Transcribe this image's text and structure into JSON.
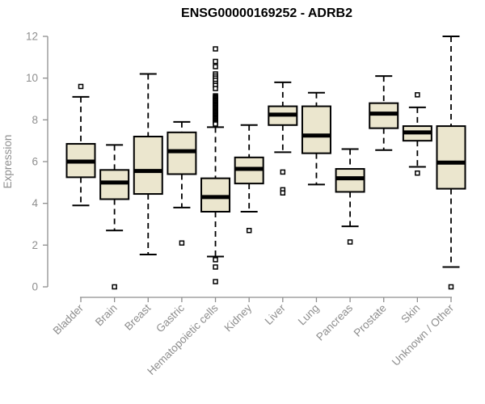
{
  "title": "ENSG00000169252 - ADRB2",
  "colors": {
    "box_fill": "#ebe6ce",
    "box_stroke": "#000000",
    "median_stroke": "#000000",
    "whisker_stroke": "#000000",
    "outlier_stroke": "#000000",
    "outlier_fill": "#ffffff",
    "axis": "#8e8e8e",
    "title": "#000000",
    "background": "#ffffff"
  },
  "chart_data": {
    "type": "boxplot",
    "title": "ENSG00000169252 - ADRB2",
    "xlabel": "",
    "ylabel": "Expression",
    "ylim": [
      0,
      12
    ],
    "yticks": [
      0,
      2,
      4,
      6,
      8,
      10,
      12
    ],
    "grid": false,
    "legend": false,
    "categories": [
      "Bladder",
      "Brain",
      "Breast",
      "Gastric",
      "Hematopoietic cells",
      "Kidney",
      "Liver",
      "Lung",
      "Pancreas",
      "Prostate",
      "Skin",
      "Unknown / Other"
    ],
    "series": [
      {
        "name": "Bladder",
        "whisker_low": 3.9,
        "q1": 5.25,
        "median": 6.0,
        "q3": 6.85,
        "whisker_high": 9.1,
        "outliers": [
          9.6
        ]
      },
      {
        "name": "Brain",
        "whisker_low": 2.7,
        "q1": 4.2,
        "median": 5.0,
        "q3": 5.6,
        "whisker_high": 6.8,
        "outliers": [
          0.0
        ]
      },
      {
        "name": "Breast",
        "whisker_low": 1.55,
        "q1": 4.45,
        "median": 5.55,
        "q3": 7.2,
        "whisker_high": 10.2,
        "outliers": []
      },
      {
        "name": "Gastric",
        "whisker_low": 3.8,
        "q1": 5.4,
        "median": 6.5,
        "q3": 7.4,
        "whisker_high": 7.9,
        "outliers": [
          2.1
        ]
      },
      {
        "name": "Hematopoietic cells",
        "whisker_low": 1.45,
        "q1": 3.6,
        "median": 4.3,
        "q3": 5.2,
        "whisker_high": 7.65,
        "outliers": [
          11.4,
          10.8,
          10.55,
          10.2,
          10.1,
          10.0,
          9.9,
          9.75,
          9.65,
          9.5,
          9.15,
          9.1,
          9.05,
          9.0,
          8.95,
          8.9,
          8.85,
          8.8,
          8.75,
          8.7,
          8.65,
          8.6,
          8.55,
          8.5,
          8.45,
          8.4,
          8.35,
          8.3,
          8.25,
          8.2,
          8.15,
          8.1,
          8.05,
          8.0,
          7.95,
          7.9,
          7.85,
          7.8,
          1.3,
          0.95,
          0.25
        ]
      },
      {
        "name": "Kidney",
        "whisker_low": 3.6,
        "q1": 4.95,
        "median": 5.65,
        "q3": 6.2,
        "whisker_high": 7.75,
        "outliers": [
          2.7
        ]
      },
      {
        "name": "Liver",
        "whisker_low": 6.45,
        "q1": 7.75,
        "median": 8.25,
        "q3": 8.65,
        "whisker_high": 9.8,
        "outliers": [
          5.5,
          4.65,
          4.5
        ]
      },
      {
        "name": "Lung",
        "whisker_low": 4.9,
        "q1": 6.4,
        "median": 7.25,
        "q3": 8.65,
        "whisker_high": 9.3,
        "outliers": []
      },
      {
        "name": "Pancreas",
        "whisker_low": 2.9,
        "q1": 4.55,
        "median": 5.2,
        "q3": 5.65,
        "whisker_high": 6.6,
        "outliers": [
          2.15
        ]
      },
      {
        "name": "Prostate",
        "whisker_low": 6.55,
        "q1": 7.6,
        "median": 8.3,
        "q3": 8.8,
        "whisker_high": 10.1,
        "outliers": []
      },
      {
        "name": "Skin",
        "whisker_low": 5.75,
        "q1": 7.0,
        "median": 7.4,
        "q3": 7.7,
        "whisker_high": 8.6,
        "outliers": [
          9.2,
          5.45
        ]
      },
      {
        "name": "Unknown / Other",
        "whisker_low": 0.95,
        "q1": 4.7,
        "median": 5.95,
        "q3": 7.7,
        "whisker_high": 12.0,
        "outliers": [
          0.0
        ]
      }
    ]
  }
}
